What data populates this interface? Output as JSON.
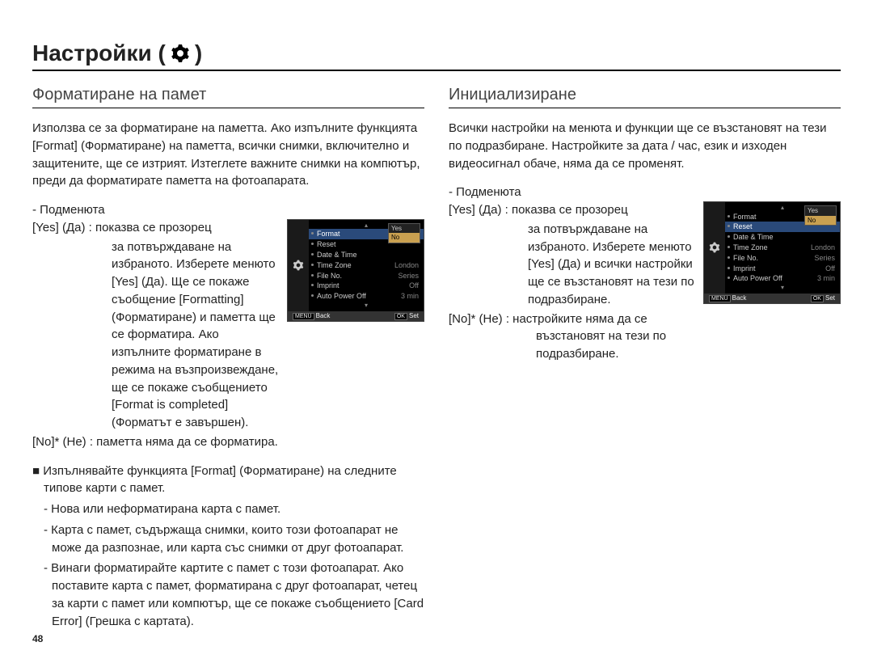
{
  "page": {
    "title_prefix": "Настройки (",
    "title_suffix": ")",
    "number": "48"
  },
  "left": {
    "heading": "Форматиране на памет",
    "intro": "Използва се за форматиране на паметта. Ако изпълните функцията [Format] (Форматиране) на паметта, всички снимки, включително и защитените, ще се изтрият. Изтеглете важните снимки на компютър, преди да форматирате паметта на фотоапарата.",
    "submenu_label": "- Подменюта",
    "yes_line1": "[Yes] (Да) : показва се прозорец",
    "yes_cont": "за потвърждаване на избраното. Изберете менюто [Yes] (Да). Ще се покаже съобщение [Formatting] (Форматиране) и паметта ще се форматира. Ако изпълните форматиране в режима на възпроизвеждане, ще се покаже съобщението [Format is completed] (Форматът е завършен).",
    "no_line": "[No]* (Не) : паметта няма да се форматира.",
    "bullet_lead": "■ Изпълнявайте функцията [Format] (Форматиране) на следните типове карти с памет.",
    "dash1": "- Нова или неформатирана карта с памет.",
    "dash2": "- Карта с памет, съдържаща снимки, които този фотоапарат не може да разпознае, или карта със снимки от друг фотоапарат.",
    "dash3": "- Винаги форматирайте картите с памет с този фотоапарат. Ако поставите карта с памет, форматирана с друг фотоапарат, четец за карти с памет или компютър, ще се покаже съобщението [Card Error] (Грешка с картата)."
  },
  "right": {
    "heading": "Инициализиране",
    "intro": "Всички настройки на менюта и функции ще се възстановят на тези по подразбиране. Настройките за дата / час, език и изходен видеосигнал обаче, няма да се променят.",
    "submenu_label": "- Подменюта",
    "yes_line1": "[Yes] (Да) : показва се прозорец",
    "yes_cont": "за потвърждаване на избраното. Изберете менюто [Yes] (Да) и всички настройки ще се възстановят на тези по подразбиране.",
    "no_line": "[No]* (Не) : настройките няма да се възстановят на тези по подразбиране."
  },
  "menu1": {
    "highlight_row": "Format",
    "rows": [
      {
        "l": "Format",
        "r": ""
      },
      {
        "l": "Reset",
        "r": ""
      },
      {
        "l": "Date & Time",
        "r": ""
      },
      {
        "l": "Time Zone",
        "r": "London"
      },
      {
        "l": "File No.",
        "r": "Series"
      },
      {
        "l": "Imprint",
        "r": "Off"
      },
      {
        "l": "Auto Power Off",
        "r": "3 min"
      }
    ],
    "popup": {
      "opt1": "Yes",
      "opt2": "No"
    },
    "foot_back": "Back",
    "foot_set": "Set"
  },
  "menu2": {
    "highlight_row": "Reset",
    "rows": [
      {
        "l": "Format",
        "r": ""
      },
      {
        "l": "Reset",
        "r": ""
      },
      {
        "l": "Date & Time",
        "r": ""
      },
      {
        "l": "Time Zone",
        "r": "London"
      },
      {
        "l": "File No.",
        "r": "Series"
      },
      {
        "l": "Imprint",
        "r": "Off"
      },
      {
        "l": "Auto Power Off",
        "r": "3 min"
      }
    ],
    "popup": {
      "opt1": "Yes",
      "opt2": "No"
    },
    "foot_back": "Back",
    "foot_set": "Set"
  },
  "colors": {
    "highlight": "#2a4a7a",
    "popup_sel": "#c9a050"
  }
}
